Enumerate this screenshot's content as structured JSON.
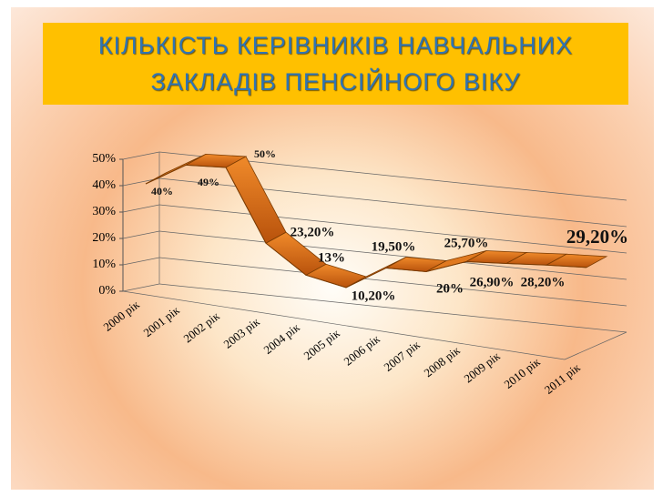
{
  "chart_data": {
    "type": "ribbon",
    "title": "КІЛЬКІСТЬ КЕРІВНИКІВ НАВЧАЛЬНИХ ЗАКЛАДІВ ПЕНСІЙНОГО ВІКУ",
    "categories": [
      "2000 рік",
      "2001 рік",
      "2002 рік",
      "2003 рік",
      "2004 рік",
      "2005 рік",
      "2006 рік",
      "2007 рік",
      "2008 рік",
      "2009 рік",
      "2010 рік",
      "2011 рік"
    ],
    "values": [
      40,
      49,
      50,
      23.2,
      13,
      10.2,
      19.5,
      20,
      25.7,
      26.9,
      28.2,
      29.2
    ],
    "value_labels": [
      "40%",
      "49%",
      "50%",
      "23,20%",
      "13%",
      "10,20%",
      "19,50%",
      "20%",
      "25,70%",
      "26,90%",
      "28,20%",
      "29,20%"
    ],
    "color": "#e0791f",
    "ylim": [
      0,
      50
    ],
    "yticks": [
      {
        "value": 0,
        "label": "0%"
      },
      {
        "value": 10,
        "label": "10%"
      },
      {
        "value": 20,
        "label": "20%"
      },
      {
        "value": 30,
        "label": "30%"
      },
      {
        "value": 40,
        "label": "40%"
      },
      {
        "value": 50,
        "label": "50%"
      }
    ],
    "grid": true
  }
}
